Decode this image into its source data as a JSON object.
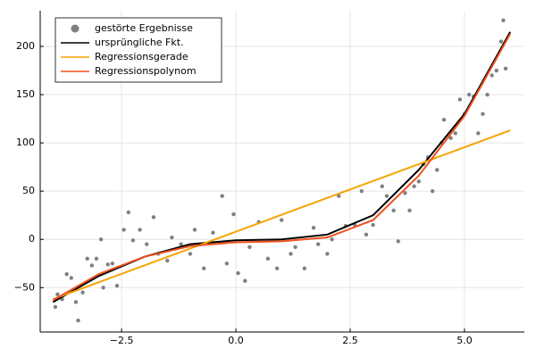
{
  "chart_data": {
    "type": "line",
    "xlim": [
      -4.28,
      6.31
    ],
    "ylim": [
      -96,
      237
    ],
    "xticks": [
      {
        "value": -2.5,
        "label": "−2.5"
      },
      {
        "value": 0,
        "label": "0.0"
      },
      2.5,
      {
        "value": 5,
        "label": "5.0"
      }
    ],
    "yticks": [
      {
        "value": -50,
        "label": "−50"
      },
      0,
      50,
      100,
      150,
      200
    ],
    "grid": true,
    "legend": "top-left",
    "series": [
      {
        "name": "gestörte Ergebnisse",
        "type": "scatter",
        "color": "#808080",
        "x": [
          -3.95,
          -3.9,
          -3.8,
          -3.7,
          -3.6,
          -3.5,
          -3.45,
          -3.35,
          -3.25,
          -3.15,
          -3.05,
          -2.95,
          -2.9,
          -2.8,
          -2.7,
          -2.6,
          -2.45,
          -2.35,
          -2.25,
          -2.1,
          -1.95,
          -1.8,
          -1.7,
          -1.5,
          -1.4,
          -1.2,
          -1,
          -0.9,
          -0.7,
          -0.5,
          -0.3,
          -0.2,
          -0.05,
          0.05,
          0.2,
          0.3,
          0.5,
          0.7,
          0.9,
          1.0,
          1.2,
          1.3,
          1.5,
          1.7,
          1.8,
          2.0,
          2.1,
          2.25,
          2.4,
          2.6,
          2.75,
          2.85,
          3.0,
          3.2,
          3.3,
          3.45,
          3.55,
          3.7,
          3.8,
          3.9,
          4.0,
          4.1,
          4.2,
          4.3,
          4.4,
          4.5,
          4.55,
          4.7,
          4.8,
          4.9,
          5.0,
          5.1,
          5.2,
          5.3,
          5.4,
          5.5,
          5.6,
          5.7,
          5.8,
          5.85,
          5.9
        ],
        "values": [
          -70,
          -57,
          -62,
          -36,
          -40,
          -65,
          -84,
          -55,
          -20,
          -27,
          -20,
          0,
          -50,
          -26,
          -25,
          -48,
          10,
          28,
          -1,
          10,
          -5,
          23,
          -15,
          -22,
          2,
          -5,
          -15,
          10,
          -30,
          7,
          45,
          -25,
          26,
          -35,
          -43,
          -8,
          18,
          -20,
          -30,
          20,
          -15,
          -8,
          -30,
          12,
          -5,
          -15,
          0,
          45,
          14,
          15,
          50,
          5,
          15,
          55,
          45,
          30,
          -2,
          48,
          30,
          55,
          60,
          78,
          85,
          50,
          72,
          100,
          124,
          105,
          110,
          145,
          130,
          150,
          148,
          110,
          130,
          150,
          170,
          175,
          205,
          227,
          177
        ]
      },
      {
        "name": "ursprüngliche Fkt.",
        "type": "line",
        "color": "#000000",
        "x": [
          -4,
          -3,
          -2,
          -1,
          0,
          1,
          2,
          3,
          4,
          5,
          6
        ],
        "values": [
          -65,
          -38,
          -18,
          -5,
          -1,
          0,
          5,
          25,
          72,
          130,
          215
        ]
      },
      {
        "name": "Regressionsgerade",
        "type": "line",
        "color": "#f5a400",
        "x": [
          -4,
          6
        ],
        "values": [
          -62,
          113
        ]
      },
      {
        "name": "Regressionspolynom",
        "type": "line",
        "color": "#f0501e",
        "x": [
          -4,
          -3,
          -2,
          -1,
          0,
          1,
          2,
          3,
          4,
          5,
          6
        ],
        "values": [
          -63,
          -36,
          -18,
          -7,
          -3,
          -2,
          2,
          20,
          66,
          128,
          213
        ]
      }
    ]
  }
}
